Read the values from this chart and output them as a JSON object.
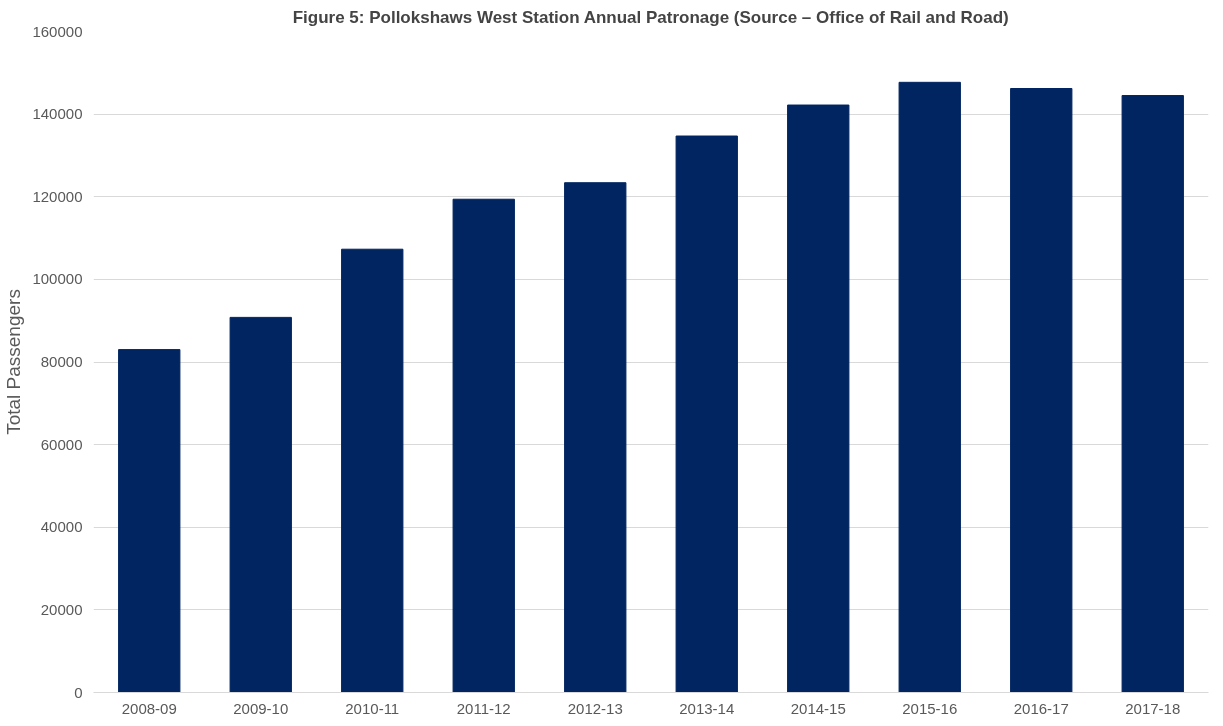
{
  "chart_data": {
    "type": "bar",
    "title": "Figure 5: Pollokshaws West Station Annual Patronage (Source – Office of Rail and Road)",
    "ylabel": "Total Passengers",
    "categories": [
      "2008-09",
      "2009-10",
      "2010-11",
      "2011-12",
      "2012-13",
      "2013-14",
      "2014-15",
      "2015-16",
      "2016-17",
      "2017-18"
    ],
    "values": [
      83000,
      90800,
      107300,
      119400,
      123400,
      134700,
      142200,
      147700,
      146200,
      144500
    ],
    "color": "#002560",
    "ylim": [
      0,
      160000
    ],
    "yticks": [
      0,
      20000,
      40000,
      60000,
      80000,
      100000,
      120000,
      140000,
      160000
    ],
    "grid": "y"
  }
}
